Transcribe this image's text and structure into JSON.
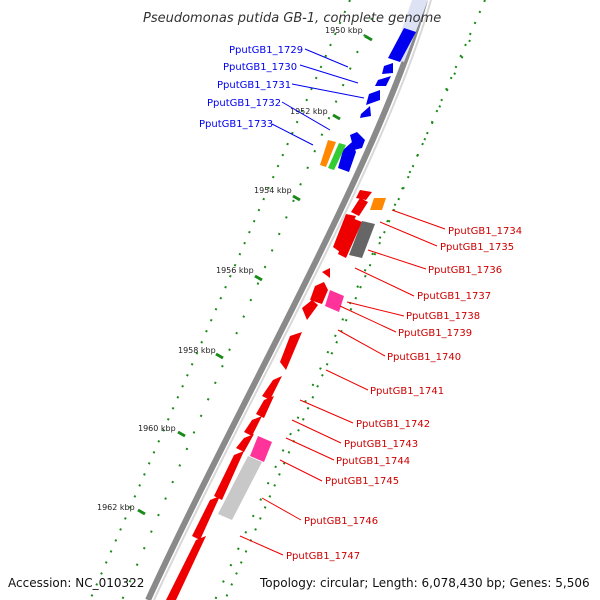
{
  "header": {
    "title": "Pseudomonas putida GB-1, complete genome"
  },
  "footer": {
    "accession": "Accession: NC_010322",
    "topology": "Topology: circular; Length: 6,078,430 bp; Genes: 5,506"
  },
  "colors": {
    "forward_gene": "#0000ee",
    "reverse_gene": "#ee0000",
    "pink_gene": "#ff3399",
    "orange_gene": "#ff8800",
    "green_gene": "#33cc33",
    "dark_gray_gene": "#666666",
    "light_gray_gene": "#c8c8c8",
    "backbone": "#8a8a8a",
    "tick": "#1a8a1a"
  },
  "ticks": [
    {
      "label": "1950 kbp"
    },
    {
      "label": "1952 kbp"
    },
    {
      "label": "1954 kbp"
    },
    {
      "label": "1956 kbp"
    },
    {
      "label": "1958 kbp"
    },
    {
      "label": "1960 kbp"
    },
    {
      "label": "1962 kbp"
    }
  ],
  "forward_labels": [
    "PputGB1_1729",
    "PputGB1_1730",
    "PputGB1_1731",
    "PputGB1_1732",
    "PputGB1_1733"
  ],
  "reverse_labels": [
    "PputGB1_1734",
    "PputGB1_1735",
    "PputGB1_1736",
    "PputGB1_1737",
    "PputGB1_1738",
    "PputGB1_1739",
    "PputGB1_1740",
    "PputGB1_1741",
    "PputGB1_1742",
    "PputGB1_1743",
    "PputGB1_1744",
    "PputGB1_1745",
    "PputGB1_1746",
    "PputGB1_1747"
  ]
}
